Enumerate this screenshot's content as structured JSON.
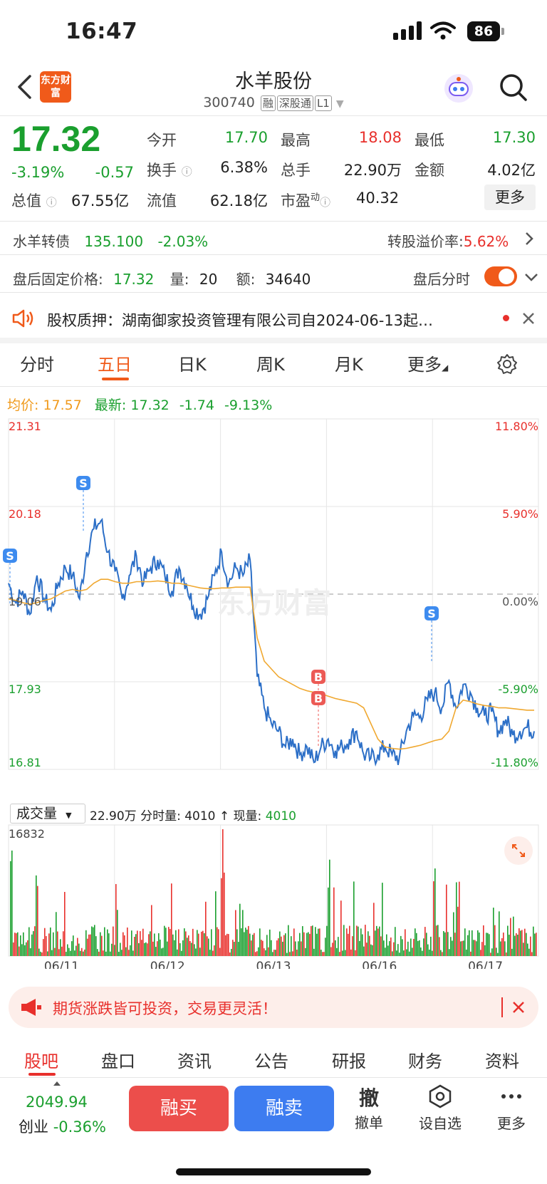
{
  "status": {
    "time": "16:47",
    "battery": "86"
  },
  "header": {
    "name": "水羊股份",
    "code": "300740",
    "tags": [
      "融",
      "深股通",
      "L1"
    ],
    "logo_text": "东方财富"
  },
  "quote": {
    "price": "17.32",
    "change_pct": "-3.19%",
    "change": "-0.57",
    "open_label": "今开",
    "open": "17.70",
    "high_label": "最高",
    "high": "18.08",
    "low_label": "最低",
    "low": "17.30",
    "turnover_label": "换手",
    "turnover": "6.38%",
    "volume_label": "总手",
    "volume": "22.90万",
    "amount_label": "金额",
    "amount": "4.02亿",
    "mktcap_label": "总值",
    "mktcap": "67.55亿",
    "float_label": "流值",
    "float": "62.18亿",
    "pe_label": "市盈",
    "pe_sup": "动",
    "pe": "40.32",
    "more": "更多"
  },
  "bond": {
    "name": "水羊转债",
    "price": "135.100",
    "change": "-2.03%",
    "premium_label": "转股溢价率:",
    "premium": "5.62%"
  },
  "afterhours": {
    "label": "盘后固定价格:",
    "price": "17.32",
    "vol_label": "量:",
    "vol": "20",
    "amt_label": "额:",
    "amt": "34640",
    "toggle_label": "盘后分时"
  },
  "notice": {
    "text": "股权质押：湖南御家投资管理有限公司自2024-06-13起…"
  },
  "tabs": [
    "分时",
    "五日",
    "日K",
    "周K",
    "月K",
    "更多"
  ],
  "active_tab": "五日",
  "chart_info": {
    "avg_label": "均价:",
    "avg": "17.57",
    "last_label": "最新:",
    "last": "17.32",
    "chg": "-1.74",
    "chg_pct": "-9.13%"
  },
  "volume_info": {
    "selector": "成交量",
    "total": "22.90万",
    "bar_label": "分时量:",
    "bar_val": "4010",
    "arrow": "↑",
    "now_label": "现量:",
    "now_val": "4010"
  },
  "watermark": "东方财富",
  "promo": {
    "text": "期货涨跌皆可投资，交易更灵活！"
  },
  "bottom_tabs": [
    "股吧",
    "盘口",
    "资讯",
    "公告",
    "研报",
    "财务",
    "资料"
  ],
  "index": {
    "value": "2049.94",
    "name": "创业",
    "change": "-0.36%"
  },
  "actions": {
    "buy": "融买",
    "sell": "融卖",
    "cancel_icon": "撤",
    "cancel": "撤单",
    "watch": "设自选",
    "more": "更多"
  },
  "chart_data": {
    "type": "line",
    "title": "",
    "xlabel": "",
    "ylabel": "",
    "ylim": [
      16.81,
      21.31
    ],
    "y_ticks": [
      "21.31",
      "20.18",
      "19.06",
      "17.93",
      "16.81"
    ],
    "y2_ticks": [
      "11.80%",
      "5.90%",
      "0.00%",
      "-5.90%",
      "-11.80%"
    ],
    "days": [
      "06/11",
      "06/12",
      "06/13",
      "06/16",
      "06/17"
    ],
    "series": [
      {
        "values": [
          19.2,
          18.95,
          19.1,
          18.8,
          19.3,
          19.0,
          18.85,
          19.2,
          19.4,
          19.3,
          19.0,
          19.6,
          19.9,
          20.0,
          19.6,
          19.35,
          19.0,
          19.3,
          19.55,
          19.2,
          19.4,
          19.5,
          19.3,
          19.1,
          19.4,
          19.2,
          18.9,
          18.8,
          19.0,
          19.3,
          19.6,
          19.2,
          19.4,
          19.3,
          19.5,
          18.0,
          17.6,
          17.4,
          17.3,
          17.1,
          17.2,
          17.0,
          17.1,
          16.9,
          17.1,
          17.2,
          17.05,
          17.1,
          17.2,
          17.3,
          17.0,
          16.95,
          17.0,
          17.1,
          17.0,
          16.95,
          17.3,
          17.5,
          17.5,
          17.7,
          17.8,
          17.6,
          17.95,
          17.6,
          17.9,
          17.8,
          17.6,
          17.5,
          17.55,
          17.3,
          17.45,
          17.25,
          17.3,
          17.35,
          17.3
        ]
      },
      {
        "values": [
          19.0,
          18.98,
          18.95,
          18.93,
          18.95,
          18.98,
          19.0,
          19.05,
          19.1,
          19.12,
          19.1,
          19.12,
          19.2,
          19.25,
          19.25,
          19.22,
          19.2,
          19.2,
          19.22,
          19.22,
          19.22,
          19.23,
          19.22,
          19.2,
          19.2,
          19.18,
          19.16,
          19.14,
          19.13,
          19.13,
          19.14,
          19.14,
          19.15,
          19.15,
          19.15,
          18.5,
          18.2,
          18.1,
          18.0,
          17.95,
          17.9,
          17.85,
          17.82,
          17.8,
          17.78,
          17.75,
          17.72,
          17.7,
          17.68,
          17.66,
          17.6,
          17.4,
          17.2,
          17.1,
          17.08,
          17.07,
          17.08,
          17.1,
          17.12,
          17.15,
          17.18,
          17.2,
          17.3,
          17.6,
          17.7,
          17.68,
          17.65,
          17.63,
          17.62,
          17.6,
          17.6,
          17.59,
          17.58,
          17.57,
          17.57
        ]
      }
    ],
    "markers": [
      {
        "label": "S",
        "day": "06/11",
        "value": 21.31
      },
      {
        "label": "S",
        "day": "06/11",
        "value": 20.18
      },
      {
        "label": "B",
        "day": "06/13",
        "value": 17.0
      },
      {
        "label": "B",
        "day": "06/13",
        "value": 16.9
      },
      {
        "label": "S",
        "day": "06/16",
        "value": 18.1
      }
    ],
    "volume": {
      "ymax": 16832
    }
  }
}
